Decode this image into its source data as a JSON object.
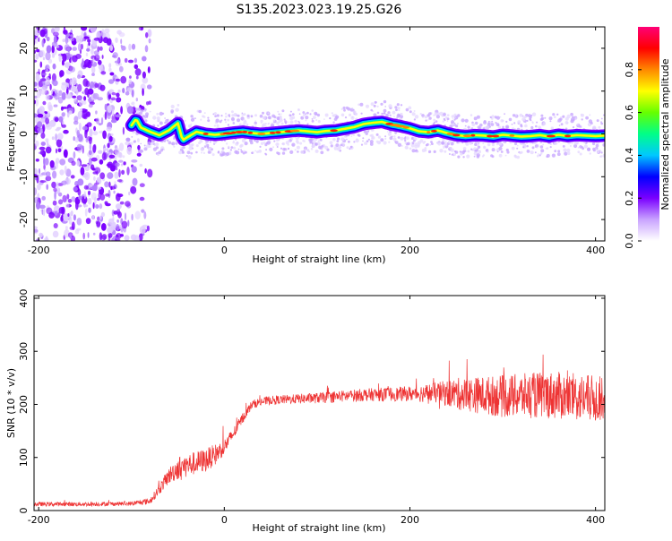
{
  "figure_title": "S135.2023.023.19.25.G26",
  "chart_data": [
    {
      "type": "heatmap",
      "title": "",
      "xlabel": "Height of straight line (km)",
      "ylabel": "Frequency (Hz)",
      "xlim": [
        -205,
        410
      ],
      "ylim": [
        -25,
        25
      ],
      "x_ticks": [
        -200,
        0,
        200,
        400
      ],
      "y_ticks": [
        -20,
        -10,
        0,
        10,
        20
      ],
      "colorbar": {
        "label": "Normalized spectral amplitude",
        "range": [
          0,
          1
        ],
        "ticks": [
          0.0,
          0.2,
          0.4,
          0.6,
          0.8
        ],
        "tick_labels": [
          "0.0",
          "0.2",
          "0.4",
          "0.6",
          "0.8"
        ],
        "colormap": [
          "#ffffff",
          "#c9a3ff",
          "#7a00ff",
          "#0000ff",
          "#00c8ff",
          "#00ff88",
          "#66ff00",
          "#ffff00",
          "#ff8800",
          "#ff0000",
          "#ff0077"
        ]
      },
      "noise_region_x": [
        -205,
        -80
      ],
      "trace": {
        "x": [
          -100,
          -95,
          -90,
          -80,
          -70,
          -60,
          -50,
          -45,
          -40,
          -30,
          -20,
          -10,
          0,
          10,
          20,
          30,
          40,
          50,
          60,
          70,
          80,
          90,
          100,
          110,
          120,
          130,
          140,
          150,
          160,
          170,
          180,
          190,
          200,
          210,
          220,
          230,
          240,
          250,
          260,
          270,
          280,
          290,
          300,
          310,
          320,
          330,
          340,
          350,
          360,
          370,
          380,
          390,
          400,
          410
        ],
        "y": [
          2,
          3.5,
          1.5,
          0.5,
          -0.3,
          0.8,
          2.5,
          -1.5,
          -0.8,
          0.5,
          0,
          -0.2,
          0,
          0.3,
          0.5,
          0.2,
          0,
          0.2,
          0.4,
          0.6,
          0.8,
          0.6,
          0.4,
          0.7,
          0.8,
          1.2,
          1.6,
          2.3,
          2.6,
          2.8,
          2.2,
          1.8,
          1.3,
          0.6,
          0.4,
          0.8,
          0.2,
          -0.3,
          -0.5,
          -0.3,
          -0.4,
          -0.6,
          -0.2,
          -0.4,
          -0.6,
          -0.5,
          -0.3,
          -0.6,
          -0.2,
          -0.5,
          -0.3,
          -0.4,
          -0.5,
          -0.4
        ]
      }
    },
    {
      "type": "line",
      "title": "",
      "xlabel": "Height of straight line (km)",
      "ylabel": "SNR (10 * v/v)",
      "xlim": [
        -205,
        410
      ],
      "ylim": [
        0,
        405
      ],
      "x_ticks": [
        -200,
        0,
        200,
        400
      ],
      "y_ticks": [
        0,
        100,
        200,
        300,
        400
      ],
      "series": [
        {
          "color": "#ee3333",
          "x": [
            -205,
            -150,
            -100,
            -80,
            -70,
            -60,
            -50,
            -40,
            -30,
            -20,
            -10,
            0,
            10,
            20,
            30,
            40,
            50,
            100,
            150,
            200,
            230,
            250,
            300,
            350,
            400,
            410
          ],
          "y": [
            12,
            12,
            13,
            18,
            40,
            65,
            80,
            85,
            90,
            95,
            105,
            120,
            145,
            175,
            200,
            205,
            208,
            212,
            218,
            220,
            222,
            220,
            215,
            218,
            210,
            212
          ],
          "jitter": [
            4,
            4,
            4,
            6,
            10,
            15,
            22,
            22,
            22,
            22,
            20,
            15,
            12,
            10,
            8,
            8,
            8,
            10,
            12,
            14,
            20,
            30,
            40,
            45,
            45,
            40
          ]
        }
      ]
    }
  ]
}
